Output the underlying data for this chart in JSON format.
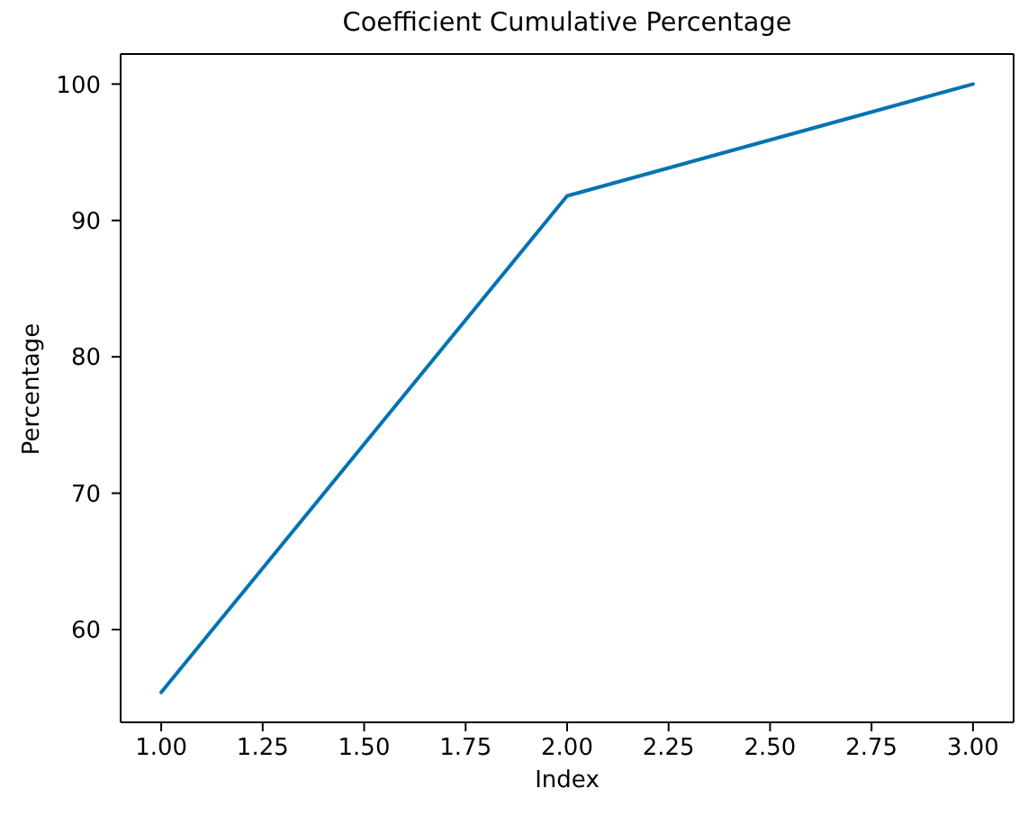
{
  "chart_data": {
    "type": "line",
    "title": "Coefficient Cumulative Percentage",
    "xlabel": "Index",
    "ylabel": "Percentage",
    "x": [
      1,
      2,
      3
    ],
    "series": [
      {
        "color": "#0173b2",
        "values": [
          55.4,
          91.8,
          100
        ]
      }
    ],
    "xlim": [
      0.9,
      3.1
    ],
    "xticks": [
      {
        "value": 1,
        "label": "1.00"
      },
      {
        "value": 1.25,
        "label": "1.25"
      },
      {
        "value": 1.5,
        "label": "1.50"
      },
      {
        "value": 1.75,
        "label": "1.75"
      },
      {
        "value": 2,
        "label": "2.00"
      },
      {
        "value": 2.25,
        "label": "2.25"
      },
      {
        "value": 2.5,
        "label": "2.50"
      },
      {
        "value": 2.75,
        "label": "2.75"
      },
      {
        "value": 3,
        "label": "3.00"
      }
    ],
    "ylim": [
      53.2,
      102.2
    ],
    "yticks": [
      60,
      70,
      80,
      90,
      100
    ],
    "marker": "none",
    "line_style": "solid"
  }
}
